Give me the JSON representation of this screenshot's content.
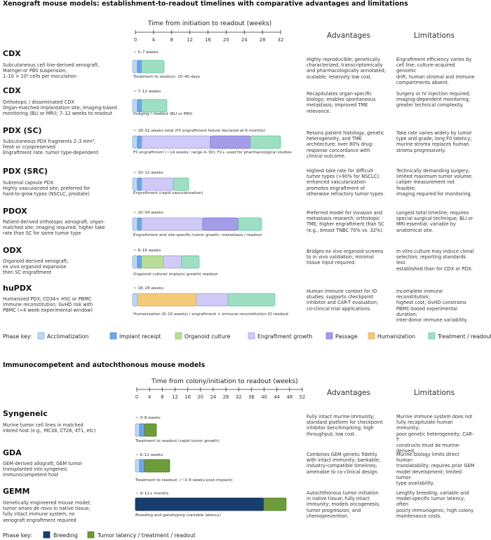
{
  "section1": {
    "title": "Xenograft mouse models: establishment-to-readout timelines with comparative advantages and limitations",
    "axis_title": "Time from initiation to readout (weeks)",
    "ticks": [
      "0",
      "4",
      "8",
      "12",
      "16",
      "20",
      "24",
      "28",
      "32"
    ],
    "col_advantages": "Advantages",
    "col_limitations": "Limitations",
    "models": [
      {
        "name": "CDX",
        "desc_lines": [
          "Subcutaneous cell line-derived xenograft,",
          "Matrigel or PBS suspension,",
          "1–10 × 10⁶ cells per inoculation"
        ],
        "duration": "~ 5–7 weeks",
        "caption": "Treatment to readout: 20–40 days",
        "adv_lines": [
          "Highly reproducible; genetically",
          "characterized, transcriptomically",
          "and pharmacologically annotated;",
          "scalable; relatively low cost."
        ],
        "lim_lines": [
          "Engraftment efficiency varies by",
          "cell line; culture-acquired genomic",
          "drift; human stromal and immune",
          "compartments absent."
        ]
      },
      {
        "name": "CDX",
        "desc_lines": [
          "Orthotopic / disseminated CDX",
          "Organ-matched implantation site; imaging-based",
          "monitoring (BLI or MRI); 7–12 weeks to readout"
        ],
        "duration": "~ 7–12 weeks",
        "caption": "Imaging / readout (BLI or MRI)",
        "adv_lines": [
          "Recapitulates organ-specific",
          "biology; enables spontaneous",
          "metastasis; improved TME",
          "relevance."
        ],
        "lim_lines": [
          "Surgery or IV injection required;",
          "imaging-dependent monitoring;",
          "greater technical complexity."
        ]
      },
      {
        "name": "PDX (SC)",
        "desc_lines": [
          "Subcutaneous PDX fragments 2–3 mm³,",
          "fresh or cryopreserved",
          "Engraftment rate: tumor type-dependent"
        ],
        "duration": "~ 18–32 weeks total (F0 engraftment failure declared at 6 months)",
        "caption": "F0 engraftment (~14 weeks; range 4–30); F2+ used for pharmacological studies",
        "adv_lines": [
          "Retains patient histology, genetic",
          "heterogeneity, and TME",
          "architecture; over 80% drug-",
          "response concordance with",
          "clinical outcome."
        ],
        "lim_lines": [
          "Take rate varies widely by tumor",
          "type and grade; long F0 latency;",
          "murine stroma replaces human",
          "stroma progressively."
        ]
      },
      {
        "name": "PDX (SRC)",
        "desc_lines": [
          "Subrenal capsule PDX",
          "Highly vascularized site; preferred for",
          "hard-to-grow types (NSCLC, prostate)"
        ],
        "duration": "~ 10–12 weeks",
        "caption": "Engraftment (rapid vascularisation)",
        "adv_lines": [
          "Highest take rate for difficult",
          "tumor types (>90% for NSCLC);",
          "enhanced vascularization",
          "promotes engraftment of",
          "otherwise refractory tumor types."
        ],
        "lim_lines": [
          "Technically demanding surgery;",
          "limited maximum tumor volume;",
          "caliper measurement not feasible;",
          "imaging required for monitoring."
        ]
      },
      {
        "name": "PDOX",
        "desc_lines": [
          "Patient-derived orthotopic xenograft; organ-",
          "matched site; imaging required; higher take",
          "rate than SC for same tumor type"
        ],
        "duration": "~ 20–34 weeks",
        "caption": "Engraftment and site-specific tumor growth; metastasis / readout",
        "adv_lines": [
          "Preferred model for invasion and",
          "metastasis research; orthotopic",
          "TME; higher engraftment than SC",
          "(e.g., breast TNBC 70% vs. 32%)."
        ],
        "lim_lines": [
          "Longest total timeline; requires",
          "special surgical technique; BLI or",
          "MRI essential; variable by",
          "anatomical site."
        ]
      },
      {
        "name": "ODX",
        "desc_lines": [
          "Organoid-derived xenograft;",
          "ex vivo organoid expansion",
          "then SC engraftment"
        ],
        "duration": "~ 8–16 weeks",
        "caption": "Organoid culture/ implant/ growth/ readout",
        "adv_lines": [
          "Bridges ex vivo organoid screens",
          "to in vivo validation; minimal",
          "tissue input required."
        ],
        "lim_lines": [
          "In vitro culture may induce clonal",
          "selection; reporting standards less",
          "established than for CDX or PDX."
        ]
      },
      {
        "name": "huPDX",
        "desc_lines": [
          "Humanized PDX; CD34+ HSC or PBMC",
          "immune reconstitution; GvHD risk with",
          "PBMC (<4 week experimental window)"
        ],
        "duration": "~ 18–28 weeks",
        "caption": "Humanization (6–10 weeks) / engraftment + immune reconstitution IO readout",
        "adv_lines": [
          "Human immune context for IO",
          "studies; supports checkpoint",
          "inhibitor and CAR-T evaluation;",
          "co-clinical trial applications."
        ],
        "lim_lines": [
          "Incomplete immune reconstitution;",
          "highest cost; GvHD constrains",
          "PBMC-based experimental duration;",
          "inter-donor immune variability."
        ]
      }
    ],
    "key_label": "Phase key:",
    "key": [
      {
        "label": "Acclimatization",
        "color": "#bcd6f5"
      },
      {
        "label": "Implant receipt",
        "color": "#6fa6e6"
      },
      {
        "label": "Organoid culture",
        "color": "#b8dd98"
      },
      {
        "label": "Engraftment growth",
        "color": "#cfcaf6"
      },
      {
        "label": "Passage",
        "color": "#a49ce6"
      },
      {
        "label": "Humanization",
        "color": "#f3ca7a"
      },
      {
        "label": "Treatment / readout",
        "color": "#9edfc3"
      }
    ]
  },
  "section2": {
    "title": "Immunocompetent and autochthonous mouse models",
    "axis_title": "Time from colony/initiation to readout (weeks)",
    "ticks": [
      "0",
      "4",
      "8",
      "12",
      "16",
      "20",
      "24",
      "28",
      "32",
      "36",
      "40",
      "44",
      "48",
      "52"
    ],
    "col_advantages": "Advantages",
    "col_limitations": "Limitations",
    "models": [
      {
        "name": "Syngeneic",
        "desc_lines": [
          "Murine tumor cell lines in matched",
          "inbred host (e.g., MC38, CT26, 4T1, etc)"
        ],
        "duration": "~ 3–8 weeks",
        "caption": "Treatment to readout (rapid tumor growth)",
        "adv_lines": [
          "Fully intact murine immunity;",
          "standard platform for checkpoint",
          "inhibitor benchmarking; high",
          "throughput; low cost."
        ],
        "lim_lines": [
          "Murine immune system does not",
          "fully recapitulate human immunity;",
          "poor genetic heterogeneity; CAR-T",
          "constructs must be murine-derived."
        ]
      },
      {
        "name": "GDA",
        "desc_lines": [
          "GEM-derived allograft; GEM tumor",
          "transplanted into syngeneic",
          "immunocompetent host"
        ],
        "duration": "~ 6–12 weeks",
        "caption": "Treatment to readout: (~3–8 weeks post-implant)",
        "adv_lines": [
          "Combines GEM genetic fidelity",
          "with intact immunity; bankable;",
          "industry-compatible timelines;",
          "amenable to co-clinical design."
        ],
        "lim_lines": [
          "Murine biology limits direct human",
          "translatability; requires prior GEM",
          "model development; limited tumor-",
          "type availability."
        ]
      },
      {
        "name": "GEMM",
        "desc_lines": [
          "Genetically engineered mouse model;",
          "tumor arises de novo in native tissue;",
          "fully intact immune system; no",
          "xenograft engraftment required"
        ],
        "duration": "~ 9–12+ months",
        "caption": "Breeding and genotyping (variable latency)",
        "adv_lines": [
          "Autochthonous tumor initiation",
          "in native tissue; fully intact",
          "immunity; models oncogenesis,",
          "tumor progression, and",
          "chemoprevention."
        ],
        "lim_lines": [
          "Lengthy breeding; variable and",
          "model-specific tumor latency; often",
          "poorly immunogenic; high colony",
          "maintenance costs."
        ]
      }
    ],
    "key_label": "Phase key:",
    "key": [
      {
        "label": "Breeding",
        "color": "#183e6e"
      },
      {
        "label": "Tumor latency / treatment / readout",
        "color": "#6e9b3a"
      }
    ]
  }
}
